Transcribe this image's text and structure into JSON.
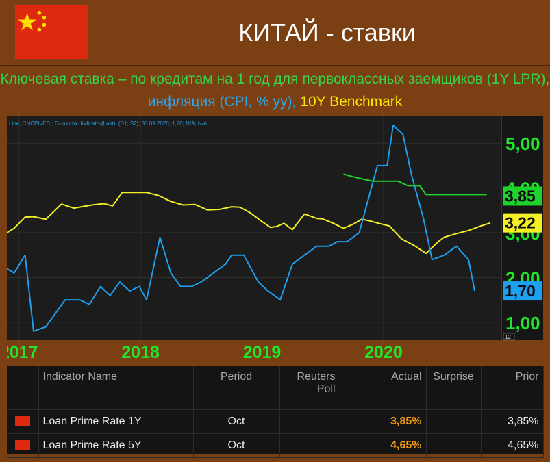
{
  "header": {
    "title": "КИТАЙ - ставки"
  },
  "subtitle": {
    "part_lpr": "Ключевая ставка – по кредитам на 1 год для первоклассных заемщиков (1Y LPR),",
    "part_cpi": " инфляция (CPI, % yy),",
    "part_bench": " 10Y Benchmark"
  },
  "colors": {
    "lpr": "#1ed32c",
    "cpi": "#1ea0f0",
    "bench": "#f5f023",
    "flag": "#de2910",
    "plot_bg": "#1c1c1c"
  },
  "chart_data": {
    "type": "line",
    "info_line": "Line; CNCPI=ECI; Economic Indicator(Last); (S1; S2); 30.09.2020; 1,70; N/A; N/A",
    "x_range": [
      2016.9,
      2020.97
    ],
    "ylim": [
      0.6,
      5.6
    ],
    "x_ticks": [
      {
        "x": 2017.0,
        "label": "2017"
      },
      {
        "x": 2018.0,
        "label": "2018"
      },
      {
        "x": 2019.0,
        "label": "2019"
      },
      {
        "x": 2020.0,
        "label": "2020"
      }
    ],
    "y_ticks": [
      {
        "value": 1.0,
        "label": "1,00"
      },
      {
        "value": 2.0,
        "label": "2,00"
      },
      {
        "value": 3.0,
        "label": "3,00"
      },
      {
        "value": 4.0,
        "label": "4,00"
      },
      {
        "value": 5.0,
        "label": "5,00"
      }
    ],
    "corner_label": "12",
    "series": [
      {
        "key": "bench",
        "last_label": "3,22",
        "points": [
          [
            2016.9,
            3.0
          ],
          [
            2016.96,
            3.1
          ],
          [
            2017.05,
            3.35
          ],
          [
            2017.12,
            3.36
          ],
          [
            2017.22,
            3.3
          ],
          [
            2017.35,
            3.64
          ],
          [
            2017.45,
            3.55
          ],
          [
            2017.6,
            3.62
          ],
          [
            2017.7,
            3.65
          ],
          [
            2017.77,
            3.6
          ],
          [
            2017.85,
            3.9
          ],
          [
            2017.93,
            3.9
          ],
          [
            2018.05,
            3.9
          ],
          [
            2018.15,
            3.83
          ],
          [
            2018.25,
            3.7
          ],
          [
            2018.35,
            3.62
          ],
          [
            2018.45,
            3.63
          ],
          [
            2018.55,
            3.51
          ],
          [
            2018.65,
            3.52
          ],
          [
            2018.75,
            3.58
          ],
          [
            2018.82,
            3.57
          ],
          [
            2018.9,
            3.45
          ],
          [
            2019.0,
            3.25
          ],
          [
            2019.07,
            3.12
          ],
          [
            2019.12,
            3.14
          ],
          [
            2019.18,
            3.21
          ],
          [
            2019.25,
            3.07
          ],
          [
            2019.35,
            3.42
          ],
          [
            2019.45,
            3.32
          ],
          [
            2019.5,
            3.31
          ],
          [
            2019.58,
            3.22
          ],
          [
            2019.67,
            3.1
          ],
          [
            2019.75,
            3.19
          ],
          [
            2019.82,
            3.3
          ],
          [
            2019.88,
            3.27
          ],
          [
            2019.96,
            3.21
          ],
          [
            2020.05,
            3.15
          ],
          [
            2020.1,
            3.0
          ],
          [
            2020.15,
            2.86
          ],
          [
            2020.25,
            2.72
          ],
          [
            2020.35,
            2.54
          ],
          [
            2020.45,
            2.8
          ],
          [
            2020.5,
            2.9
          ],
          [
            2020.6,
            2.98
          ],
          [
            2020.7,
            3.05
          ],
          [
            2020.8,
            3.15
          ],
          [
            2020.88,
            3.22
          ]
        ]
      },
      {
        "key": "cpi",
        "last_label": "1,70",
        "points": [
          [
            2016.9,
            2.2
          ],
          [
            2016.96,
            2.1
          ],
          [
            2017.05,
            2.5
          ],
          [
            2017.12,
            0.8
          ],
          [
            2017.22,
            0.9
          ],
          [
            2017.3,
            1.2
          ],
          [
            2017.38,
            1.5
          ],
          [
            2017.5,
            1.5
          ],
          [
            2017.58,
            1.4
          ],
          [
            2017.67,
            1.8
          ],
          [
            2017.75,
            1.6
          ],
          [
            2017.83,
            1.9
          ],
          [
            2017.91,
            1.7
          ],
          [
            2017.99,
            1.8
          ],
          [
            2018.05,
            1.5
          ],
          [
            2018.16,
            2.9
          ],
          [
            2018.25,
            2.1
          ],
          [
            2018.33,
            1.8
          ],
          [
            2018.42,
            1.8
          ],
          [
            2018.5,
            1.9
          ],
          [
            2018.6,
            2.1
          ],
          [
            2018.7,
            2.3
          ],
          [
            2018.75,
            2.5
          ],
          [
            2018.85,
            2.5
          ],
          [
            2018.97,
            1.9
          ],
          [
            2019.05,
            1.7
          ],
          [
            2019.15,
            1.5
          ],
          [
            2019.25,
            2.3
          ],
          [
            2019.35,
            2.5
          ],
          [
            2019.45,
            2.7
          ],
          [
            2019.55,
            2.7
          ],
          [
            2019.62,
            2.8
          ],
          [
            2019.7,
            2.8
          ],
          [
            2019.8,
            3.0
          ],
          [
            2019.88,
            3.8
          ],
          [
            2019.95,
            4.5
          ],
          [
            2020.03,
            4.5
          ],
          [
            2020.08,
            5.4
          ],
          [
            2020.16,
            5.2
          ],
          [
            2020.23,
            4.3
          ],
          [
            2020.33,
            3.3
          ],
          [
            2020.4,
            2.4
          ],
          [
            2020.5,
            2.5
          ],
          [
            2020.6,
            2.7
          ],
          [
            2020.7,
            2.4
          ],
          [
            2020.75,
            1.7
          ]
        ]
      },
      {
        "key": "lpr",
        "last_label": "3,85",
        "points": [
          [
            2019.67,
            4.31
          ],
          [
            2019.75,
            4.25
          ],
          [
            2019.83,
            4.2
          ],
          [
            2019.92,
            4.15
          ],
          [
            2020.12,
            4.15
          ],
          [
            2020.2,
            4.05
          ],
          [
            2020.3,
            4.05
          ],
          [
            2020.35,
            3.85
          ],
          [
            2020.85,
            3.85
          ]
        ]
      }
    ]
  },
  "table": {
    "headers": {
      "indicator": "Indicator Name",
      "period": "Period",
      "reuters_poll": "Reuters Poll",
      "actual": "Actual",
      "surprise": "Surprise",
      "prior": "Prior"
    },
    "rows": [
      {
        "indicator": "Loan Prime Rate 1Y",
        "period": "Oct",
        "reuters_poll": "",
        "actual": "3,85%",
        "surprise": "",
        "prior": "3,85%"
      },
      {
        "indicator": "Loan Prime Rate 5Y",
        "period": "Oct",
        "reuters_poll": "",
        "actual": "4,65%",
        "surprise": "",
        "prior": "4,65%"
      }
    ]
  }
}
